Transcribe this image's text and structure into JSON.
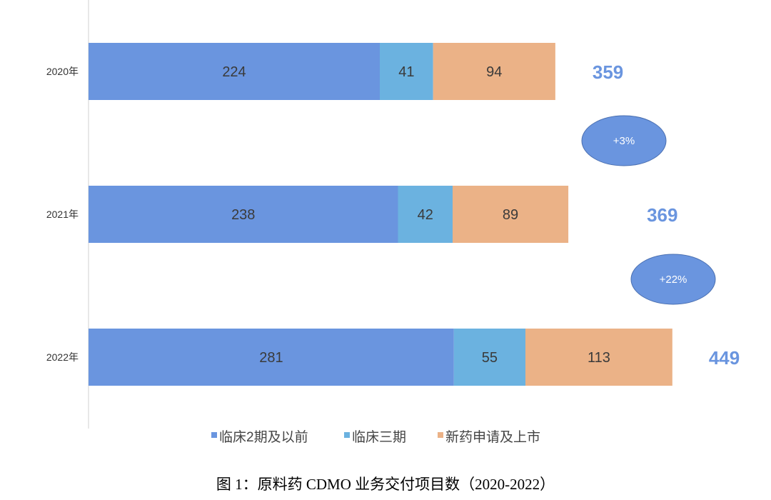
{
  "chart_data": {
    "type": "bar",
    "orientation": "horizontal",
    "stacked": true,
    "categories": [
      "2020年",
      "2021年",
      "2022年"
    ],
    "series": [
      {
        "name": "临床2期及以前",
        "values": [
          224,
          238,
          281
        ],
        "color": "#6a95df"
      },
      {
        "name": "临床三期",
        "values": [
          41,
          42,
          55
        ],
        "color": "#6bb2e0"
      },
      {
        "name": "新药申请及上市",
        "values": [
          94,
          89,
          113
        ],
        "color": "#ebb287"
      }
    ],
    "totals": [
      359,
      369,
      449
    ],
    "total_color": "#6a95df",
    "growth_annotations": [
      "+3%",
      "+22%"
    ],
    "legend_position": "bottom",
    "grid": false,
    "xlim": [
      0,
      500
    ]
  },
  "caption": "图 1：原料药 CDMO 业务交付项目数（2020-2022）"
}
